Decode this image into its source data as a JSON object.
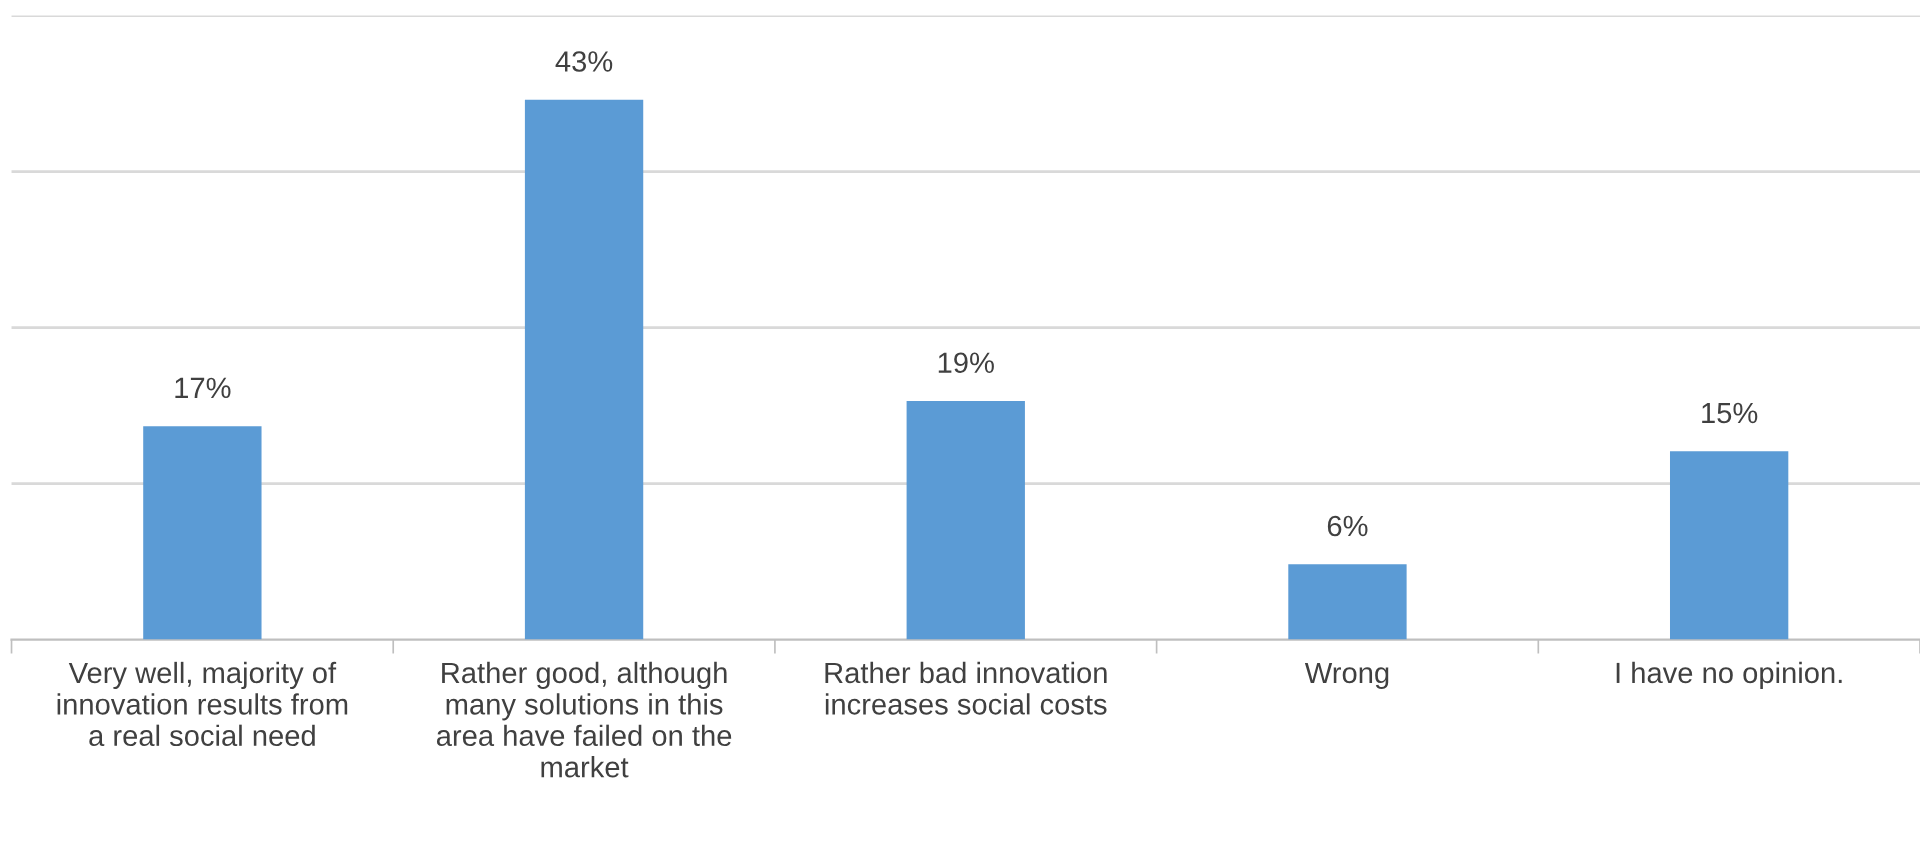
{
  "chart_data": {
    "type": "bar",
    "categories": [
      "Very well, majority of innovation results from a real social need",
      "Rather good, although many solutions in this area have failed on the market",
      "Rather bad innovation increases social costs",
      "Wrong",
      "I have no opinion."
    ],
    "values": [
      17,
      43,
      19,
      6,
      15
    ],
    "color": "#5b9bd5",
    "value_labels": [
      "17%",
      "43%",
      "19%",
      "6%",
      "15%"
    ],
    "tick_labels": "x",
    "grid": "y",
    "legend": false
  }
}
